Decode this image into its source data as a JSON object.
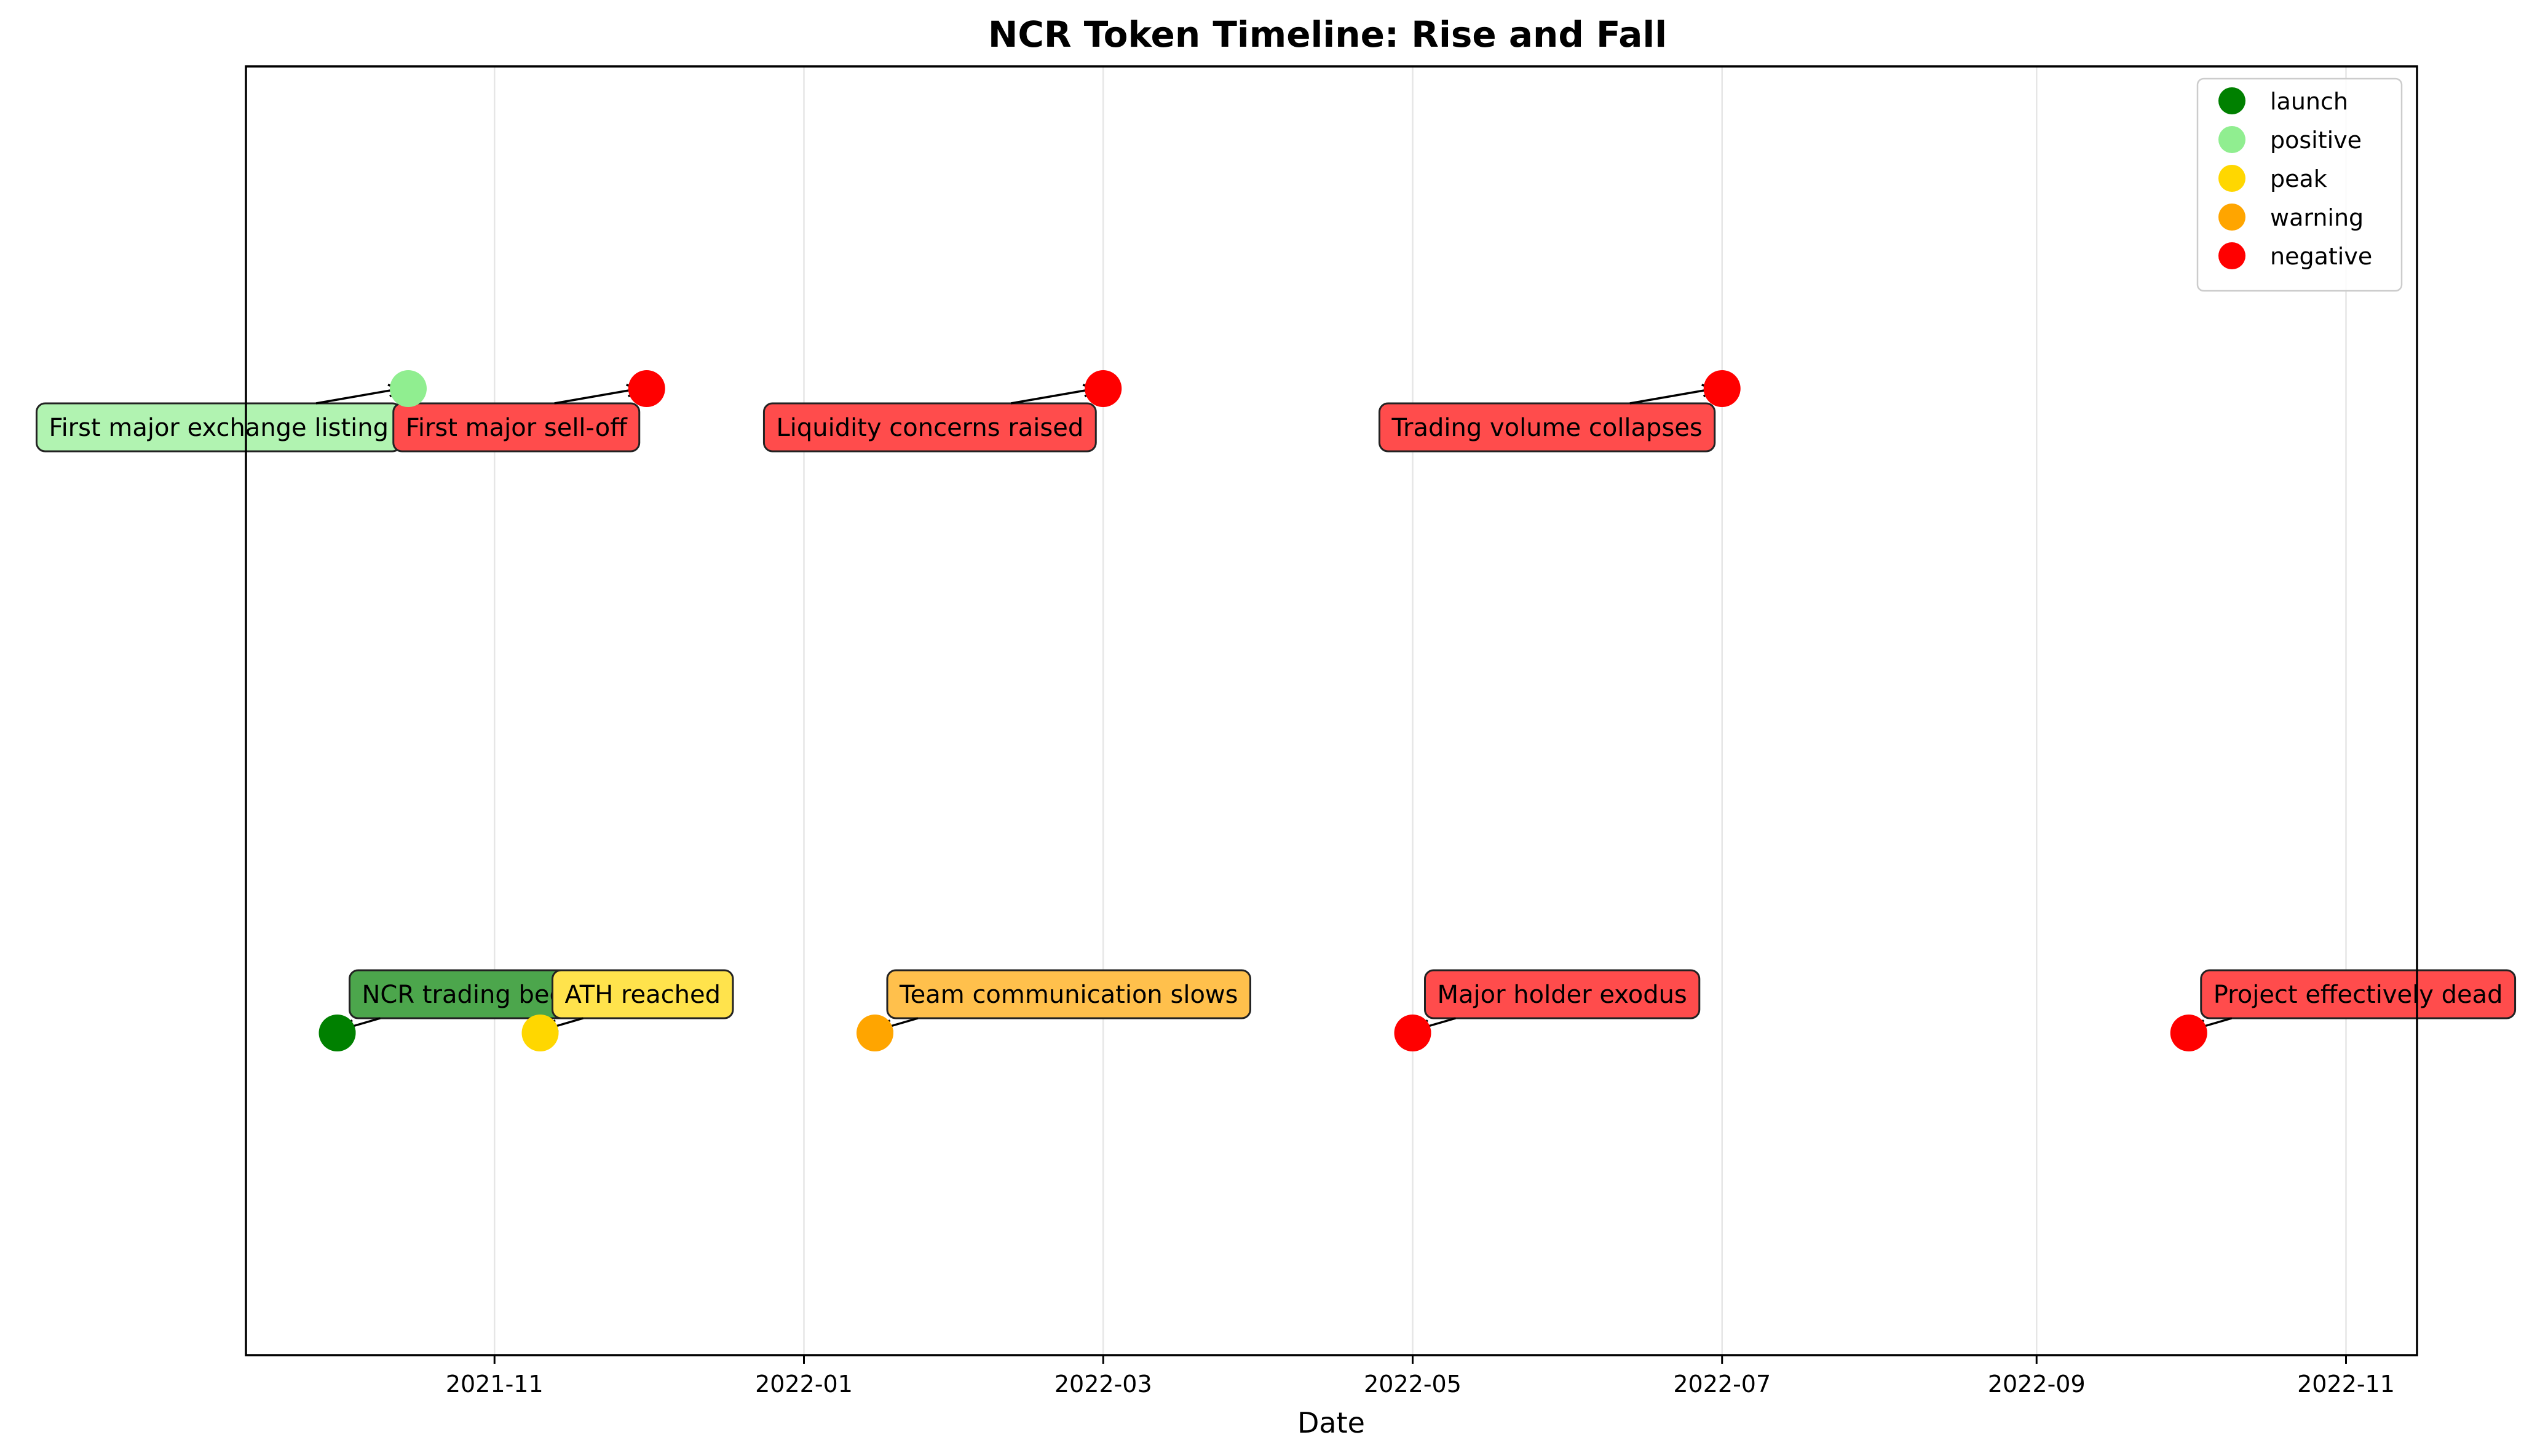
{
  "chart_data": {
    "type": "scatter",
    "title": "NCR Token Timeline: Rise and Fall",
    "xlabel": "Date",
    "ylabel": "",
    "x_ticks": [
      "2021-11",
      "2022-01",
      "2022-03",
      "2022-05",
      "2022-07",
      "2022-09",
      "2022-11"
    ],
    "xlim": [
      "2021-09-13",
      "2022-11-15"
    ],
    "ylim": [
      -0.5,
      1.5
    ],
    "grid": "x-only",
    "legend": "top-right",
    "categories": [
      {
        "name": "launch",
        "color": "#008000",
        "box_color": "#4ca64c"
      },
      {
        "name": "positive",
        "color": "#90ee90",
        "box_color": "#b1f3b1"
      },
      {
        "name": "peak",
        "color": "#ffd700",
        "box_color": "#ffe34c"
      },
      {
        "name": "warning",
        "color": "#ffa500",
        "box_color": "#ffc04c"
      },
      {
        "name": "negative",
        "color": "#ff0000",
        "box_color": "#ff4c4c"
      }
    ],
    "events": [
      {
        "date": "2021-10-01",
        "level": 0,
        "category": "launch",
        "label": "NCR trading begins"
      },
      {
        "date": "2021-10-15",
        "level": 1,
        "category": "positive",
        "label": "First major exchange listing"
      },
      {
        "date": "2021-11-10",
        "level": 0,
        "category": "peak",
        "label": "ATH reached"
      },
      {
        "date": "2021-12-01",
        "level": 1,
        "category": "negative",
        "label": "First major sell-off"
      },
      {
        "date": "2022-01-15",
        "level": 0,
        "category": "warning",
        "label": "Team communication slows"
      },
      {
        "date": "2022-03-01",
        "level": 1,
        "category": "negative",
        "label": "Liquidity concerns raised"
      },
      {
        "date": "2022-05-01",
        "level": 0,
        "category": "negative",
        "label": "Major holder exodus"
      },
      {
        "date": "2022-07-01",
        "level": 1,
        "category": "negative",
        "label": "Trading volume collapses"
      },
      {
        "date": "2022-10-01",
        "level": 0,
        "category": "negative",
        "label": "Project effectively dead"
      }
    ]
  }
}
